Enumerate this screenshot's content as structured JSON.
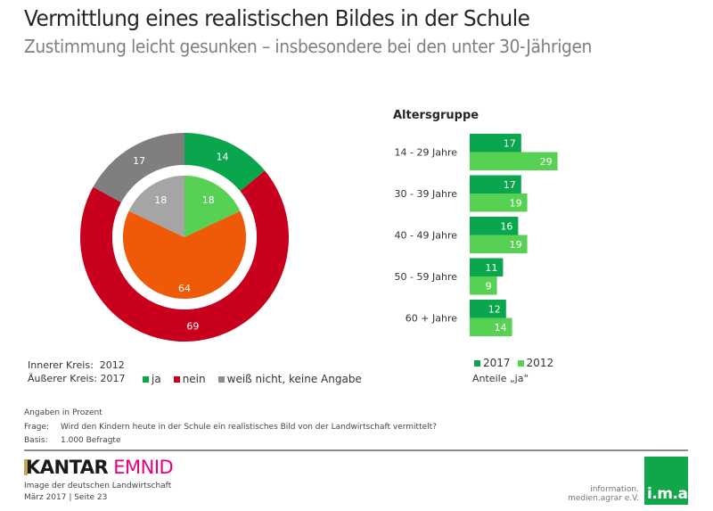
{
  "header": {
    "title": "Vermittlung eines realistischen Bildes in der Schule",
    "subtitle": "Zustimmung leicht gesunken – insbesondere bei den unter 30-Jährigen"
  },
  "colors": {
    "ja_2017": "#0aa64d",
    "ja_2012": "#57d153",
    "nein_2017": "#c8001e",
    "nein_2012": "#ef5a08",
    "unknown_2017": "#7f7f7f",
    "unknown_2012": "#a5a5a5"
  },
  "chart_data": [
    {
      "type": "pie",
      "title": "",
      "description": "Doughnut: inner circle 2012, outer ring 2017",
      "categories": [
        "ja",
        "nein",
        "weiß nicht, keine Angabe"
      ],
      "series": [
        {
          "name": "2012",
          "ring": "inner",
          "values": [
            18,
            64,
            18
          ]
        },
        {
          "name": "2017",
          "ring": "outer",
          "values": [
            14,
            69,
            17
          ]
        }
      ],
      "legend": {
        "ring_labels": [
          "Innerer Kreis:  2012",
          "Äußerer Kreis: 2017"
        ],
        "items": [
          "ja",
          "nein",
          "weiß nicht, keine Angabe"
        ],
        "placement": "bottom"
      },
      "unit": "Prozent"
    },
    {
      "type": "bar",
      "orientation": "horizontal",
      "title": "Altersgruppe",
      "categories": [
        "14 - 29 Jahre",
        "30 - 39 Jahre",
        "40 - 49 Jahre",
        "50 - 59 Jahre",
        "60 + Jahre"
      ],
      "series": [
        {
          "name": "2017",
          "values": [
            17,
            17,
            16,
            11,
            12
          ]
        },
        {
          "name": "2012",
          "values": [
            29,
            19,
            19,
            9,
            14
          ]
        }
      ],
      "xlim": [
        0,
        30
      ],
      "legend": {
        "items": [
          "2017",
          "2012"
        ],
        "placement": "bottom"
      },
      "note": "Anteile „ja“"
    }
  ],
  "notes": {
    "unit": "Angaben in Prozent",
    "question_label": "Frage:",
    "question": "Wird den Kindern heute in der Schule ein realistisches Bild von der Landwirtschaft vermittelt?",
    "base_label": "Basis:",
    "base": "1.000 Befragte"
  },
  "footer": {
    "brand_a": "KANTAR",
    "brand_b": "EMNID",
    "study": "Image der deutschen Landwirtschaft",
    "date_page": "März 2017 | Seite 23",
    "ima_line1": "information.",
    "ima_line2": "medien.agrar e.V.",
    "ima_logo": "i.m.a"
  }
}
